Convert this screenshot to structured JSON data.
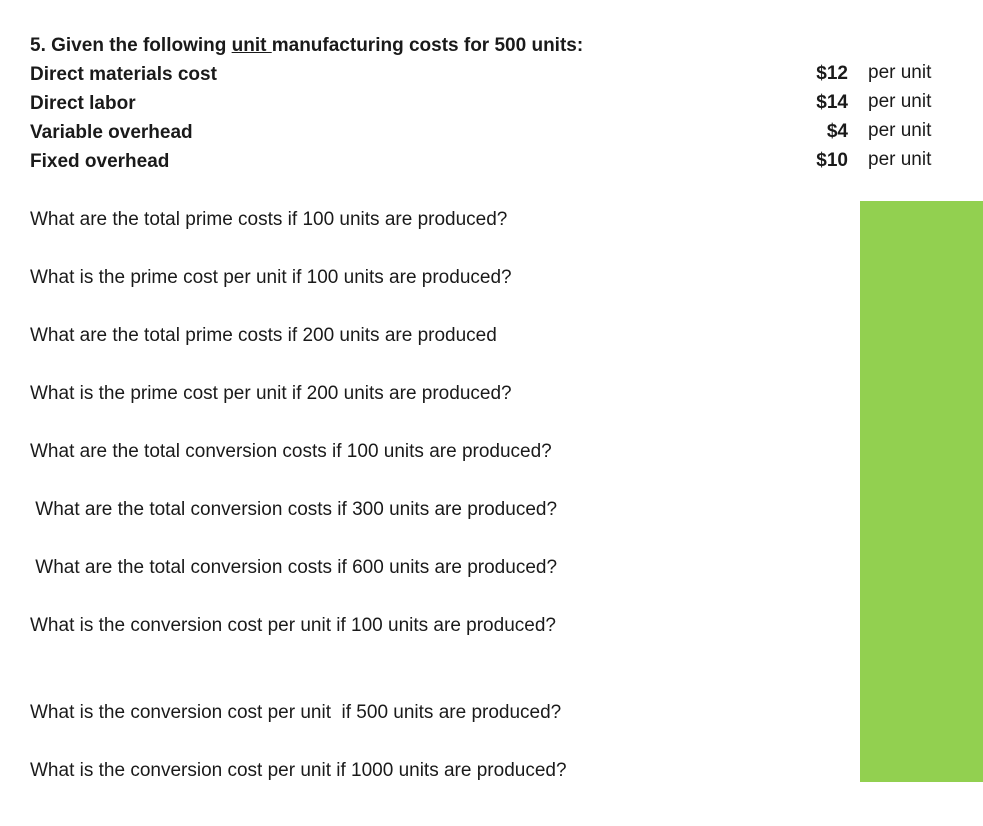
{
  "heading": {
    "prefix": "5. Given the following ",
    "underlined": "unit ",
    "suffix": "manufacturing costs for 500 units:"
  },
  "costs": [
    {
      "label": "Direct materials cost",
      "amount": "$12",
      "unit": "per unit"
    },
    {
      "label": "Direct labor",
      "amount": "$14",
      "unit": "per unit"
    },
    {
      "label": "Variable overhead",
      "amount": "$4",
      "unit": "per unit"
    },
    {
      "label": "Fixed overhead",
      "amount": "$10",
      "unit": "per unit"
    }
  ],
  "questions": [
    "What are the total prime costs if 100 units are produced?",
    "What is the prime cost per unit if 100 units are produced?",
    "What are the total prime costs if 200 units are produced",
    "What is the prime cost per unit if 200 units are produced?",
    "What are the total conversion costs if 100 units are produced?",
    " What are the total conversion costs if 300 units are produced?",
    " What are the total conversion costs if 600 units are produced?",
    "What is the conversion cost per unit if 100 units are produced?",
    "What is the conversion cost per unit  if 500 units are produced?",
    "What is the conversion cost per unit if 1000 units are produced?"
  ],
  "colors": {
    "answer_area": "#92d050"
  }
}
